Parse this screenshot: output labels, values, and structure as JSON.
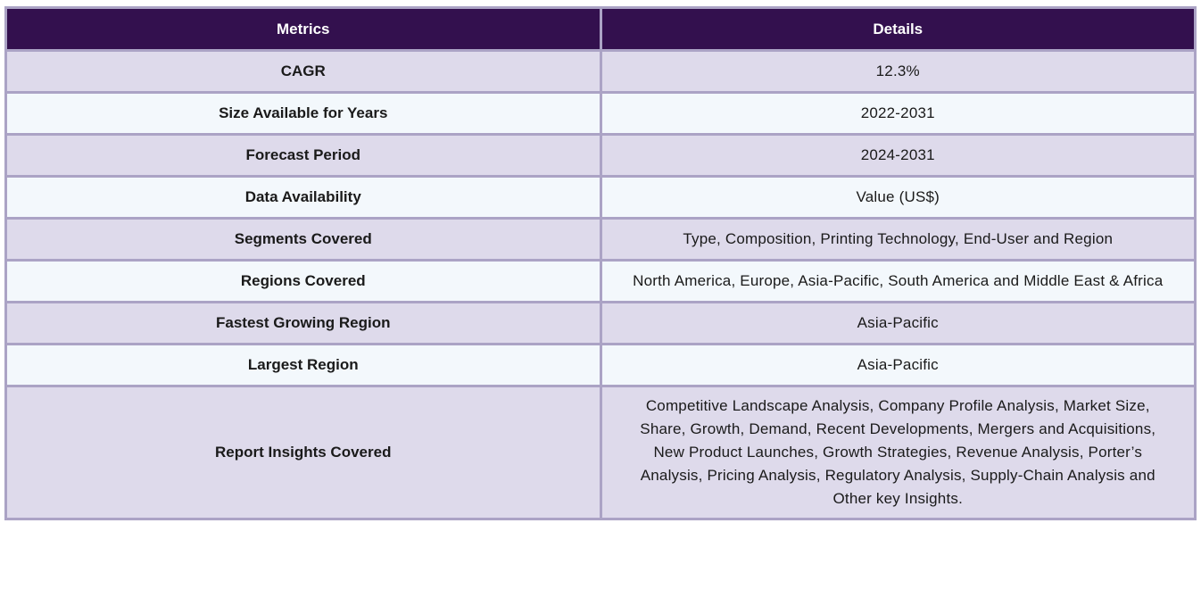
{
  "table": {
    "headers": [
      "Metrics",
      "Details"
    ],
    "rows": [
      {
        "metric": "CAGR",
        "detail": "12.3%"
      },
      {
        "metric": "Size Available for Years",
        "detail": "2022-2031"
      },
      {
        "metric": "Forecast Period",
        "detail": "2024-2031"
      },
      {
        "metric": "Data Availability",
        "detail": "Value (US$)"
      },
      {
        "metric": "Segments Covered",
        "detail": "Type, Composition, Printing Technology, End-User and Region"
      },
      {
        "metric": "Regions Covered",
        "detail": "North America, Europe, Asia-Pacific, South America and Middle East & Africa"
      },
      {
        "metric": "Fastest Growing Region",
        "detail": "Asia-Pacific"
      },
      {
        "metric": "Largest Region",
        "detail": "Asia-Pacific"
      },
      {
        "metric": "Report Insights Covered",
        "detail": "Competitive Landscape Analysis, Company Profile Analysis, Market Size, Share, Growth, Demand, Recent Developments, Mergers and Acquisitions, New Product Launches, Growth Strategies, Revenue Analysis, Porter’s Analysis, Pricing Analysis, Regulatory Analysis, Supply-Chain Analysis and Other key Insights."
      }
    ]
  },
  "chart_data": {
    "type": "table",
    "columns": [
      "Metrics",
      "Details"
    ],
    "rows": [
      [
        "CAGR",
        "12.3%"
      ],
      [
        "Size Available for Years",
        "2022-2031"
      ],
      [
        "Forecast Period",
        "2024-2031"
      ],
      [
        "Data Availability",
        "Value (US$)"
      ],
      [
        "Segments Covered",
        "Type, Composition, Printing Technology, End-User and Region"
      ],
      [
        "Regions Covered",
        "North America, Europe, Asia-Pacific, South America and Middle East & Africa"
      ],
      [
        "Fastest Growing Region",
        "Asia-Pacific"
      ],
      [
        "Largest Region",
        "Asia-Pacific"
      ],
      [
        "Report Insights Covered",
        "Competitive Landscape Analysis, Company Profile Analysis, Market Size, Share, Growth, Demand, Recent Developments, Mergers and Acquisitions, New Product Launches, Growth Strategies, Revenue Analysis, Porter’s Analysis, Pricing Analysis, Regulatory Analysis, Supply-Chain Analysis and Other key Insights."
      ]
    ]
  },
  "colors": {
    "header_bg": "#33104e",
    "header_text": "#ffffff",
    "row_odd": "#dedaeb",
    "row_even": "#f3f8fc",
    "border": "#aba3c5",
    "text": "#1a1a1a"
  }
}
